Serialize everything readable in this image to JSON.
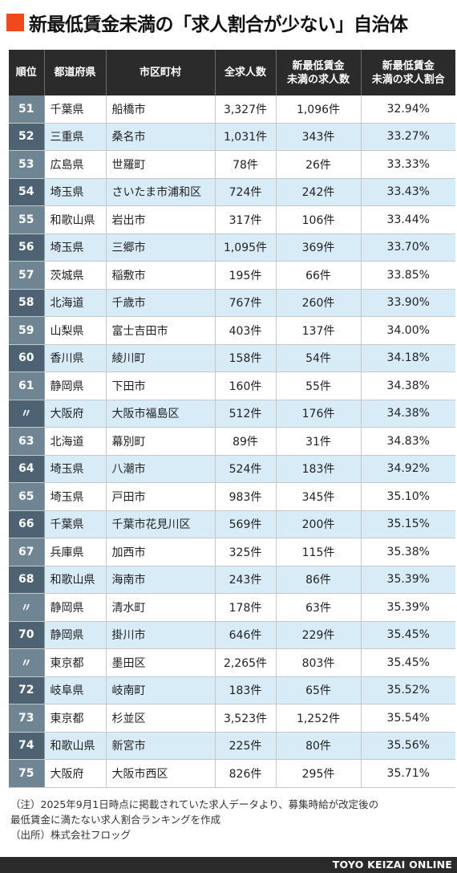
{
  "header": {
    "title": "新最低賃金未満の「求人割合が少ない」自治体",
    "accent_color": "#f04a1c"
  },
  "table": {
    "columns": [
      "順位",
      "都道府県",
      "市区町村",
      "全求人数",
      "新最低賃金\n未満の求人数",
      "新最低賃金\n未満の求人割合"
    ],
    "rows": [
      {
        "rank": "51",
        "pref": "千葉県",
        "city": "船橋市",
        "total": "3,327件",
        "below": "1,096件",
        "ratio": "32.94%"
      },
      {
        "rank": "52",
        "pref": "三重県",
        "city": "桑名市",
        "total": "1,031件",
        "below": "343件",
        "ratio": "33.27%"
      },
      {
        "rank": "53",
        "pref": "広島県",
        "city": "世羅町",
        "total": "78件",
        "below": "26件",
        "ratio": "33.33%"
      },
      {
        "rank": "54",
        "pref": "埼玉県",
        "city": "さいたま市浦和区",
        "total": "724件",
        "below": "242件",
        "ratio": "33.43%"
      },
      {
        "rank": "55",
        "pref": "和歌山県",
        "city": "岩出市",
        "total": "317件",
        "below": "106件",
        "ratio": "33.44%"
      },
      {
        "rank": "56",
        "pref": "埼玉県",
        "city": "三郷市",
        "total": "1,095件",
        "below": "369件",
        "ratio": "33.70%"
      },
      {
        "rank": "57",
        "pref": "茨城県",
        "city": "稲敷市",
        "total": "195件",
        "below": "66件",
        "ratio": "33.85%"
      },
      {
        "rank": "58",
        "pref": "北海道",
        "city": "千歳市",
        "total": "767件",
        "below": "260件",
        "ratio": "33.90%"
      },
      {
        "rank": "59",
        "pref": "山梨県",
        "city": "富士吉田市",
        "total": "403件",
        "below": "137件",
        "ratio": "34.00%"
      },
      {
        "rank": "60",
        "pref": "香川県",
        "city": "綾川町",
        "total": "158件",
        "below": "54件",
        "ratio": "34.18%"
      },
      {
        "rank": "61",
        "pref": "静岡県",
        "city": "下田市",
        "total": "160件",
        "below": "55件",
        "ratio": "34.38%"
      },
      {
        "rank": "〃",
        "pref": "大阪府",
        "city": "大阪市福島区",
        "total": "512件",
        "below": "176件",
        "ratio": "34.38%"
      },
      {
        "rank": "63",
        "pref": "北海道",
        "city": "幕別町",
        "total": "89件",
        "below": "31件",
        "ratio": "34.83%"
      },
      {
        "rank": "64",
        "pref": "埼玉県",
        "city": "八潮市",
        "total": "524件",
        "below": "183件",
        "ratio": "34.92%"
      },
      {
        "rank": "65",
        "pref": "埼玉県",
        "city": "戸田市",
        "total": "983件",
        "below": "345件",
        "ratio": "35.10%"
      },
      {
        "rank": "66",
        "pref": "千葉県",
        "city": "千葉市花見川区",
        "total": "569件",
        "below": "200件",
        "ratio": "35.15%"
      },
      {
        "rank": "67",
        "pref": "兵庫県",
        "city": "加西市",
        "total": "325件",
        "below": "115件",
        "ratio": "35.38%"
      },
      {
        "rank": "68",
        "pref": "和歌山県",
        "city": "海南市",
        "total": "243件",
        "below": "86件",
        "ratio": "35.39%"
      },
      {
        "rank": "〃",
        "pref": "静岡県",
        "city": "清水町",
        "total": "178件",
        "below": "63件",
        "ratio": "35.39%"
      },
      {
        "rank": "70",
        "pref": "静岡県",
        "city": "掛川市",
        "total": "646件",
        "below": "229件",
        "ratio": "35.45%"
      },
      {
        "rank": "〃",
        "pref": "東京都",
        "city": "墨田区",
        "total": "2,265件",
        "below": "803件",
        "ratio": "35.45%"
      },
      {
        "rank": "72",
        "pref": "岐阜県",
        "city": "岐南町",
        "total": "183件",
        "below": "65件",
        "ratio": "35.52%"
      },
      {
        "rank": "73",
        "pref": "東京都",
        "city": "杉並区",
        "total": "3,523件",
        "below": "1,252件",
        "ratio": "35.54%"
      },
      {
        "rank": "74",
        "pref": "和歌山県",
        "city": "新宮市",
        "total": "225件",
        "below": "80件",
        "ratio": "35.56%"
      },
      {
        "rank": "75",
        "pref": "大阪府",
        "city": "大阪市西区",
        "total": "826件",
        "below": "295件",
        "ratio": "35.71%"
      }
    ]
  },
  "footnote": {
    "line1": "（注）2025年9月1日時点に掲載されていた求人データより、募集時給が改定後の",
    "line2": "最低賃金に満たない求人割合ランキングを作成",
    "line3": "（出所）株式会社フロッグ"
  },
  "brand": "TOYO KEIZAI ONLINE"
}
